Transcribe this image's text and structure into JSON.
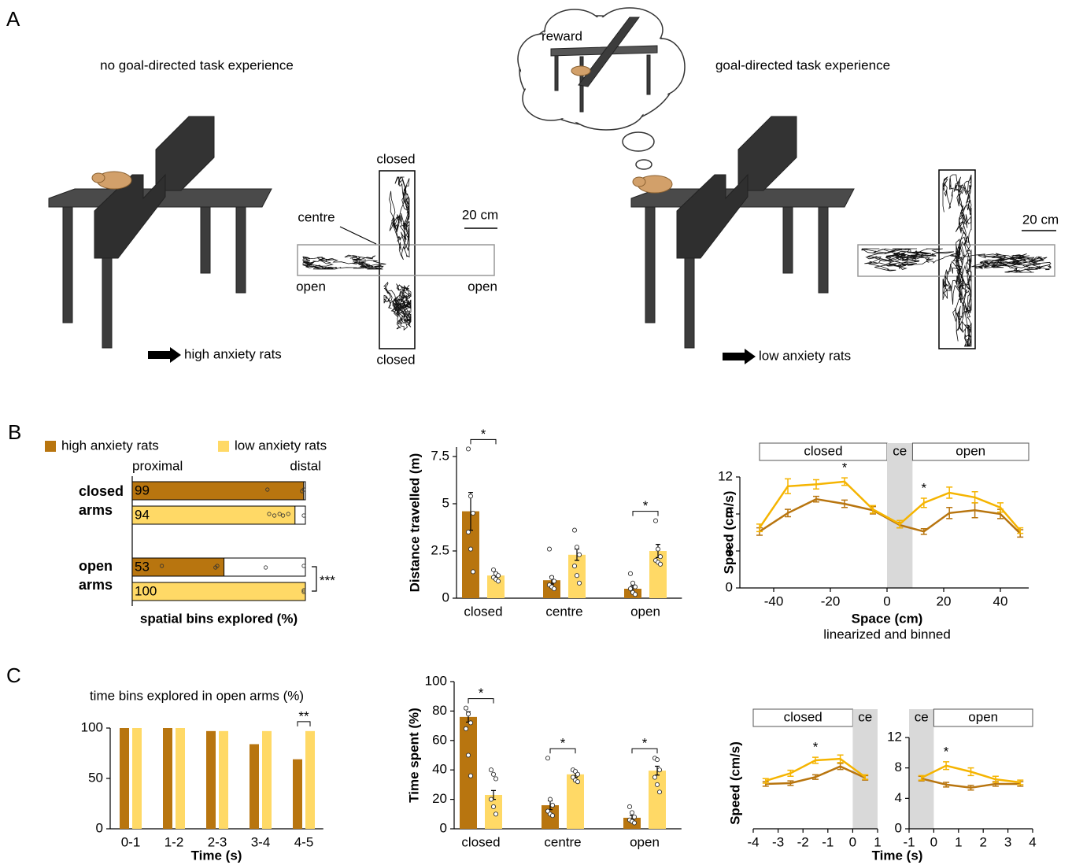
{
  "panel_labels": [
    "A",
    "B",
    "C"
  ],
  "panel_a": {
    "left": {
      "title": "no goal-directed task experience",
      "result": "high anxiety rats",
      "maze_labels": {
        "closed_top": "closed",
        "closed_bottom": "closed",
        "centre": "centre",
        "open_left": "open",
        "open_right": "open"
      },
      "scale_bar": "20 cm"
    },
    "right": {
      "title": "goal-directed task experience",
      "result": "low anxiety rats",
      "thought": "reward",
      "scale_bar": "20 cm"
    }
  },
  "chart_data": [
    {
      "type": "hbar",
      "categories": [
        "closed arms",
        "open arms"
      ],
      "series": [
        {
          "name": "high anxiety rats",
          "color": "#b8750f",
          "values": [
            99,
            53
          ],
          "points": [
            [
              79,
              99,
              100
            ],
            [
              18,
              49,
              50,
              78,
              100
            ]
          ]
        },
        {
          "name": "low anxiety rats",
          "color": "#ffd966",
          "values": [
            94,
            100
          ],
          "points": [
            [
              80,
              83,
              86,
              88,
              91,
              100
            ],
            [
              100,
              100
            ]
          ]
        }
      ],
      "xlim": [
        0,
        100
      ],
      "axis_ends": [
        "proximal",
        "distal"
      ],
      "xlabel": "spatial bins explored (%)",
      "annotations": [
        {
          "text": "***",
          "category": 1
        }
      ]
    },
    {
      "type": "bar",
      "ylabel": "Distance travelled (m)",
      "categories": [
        "closed",
        "centre",
        "open"
      ],
      "series": [
        {
          "color": "#b8750f",
          "values": [
            4.6,
            0.95,
            0.5
          ],
          "errors": [
            1.0,
            0.2,
            0.15
          ],
          "points": [
            [
              7.9,
              5.4,
              4.5,
              3.5,
              2.6,
              1.4
            ],
            [
              2.6,
              1.1,
              0.9,
              0.7,
              0.6,
              0.5
            ],
            [
              1.3,
              0.8,
              0.6,
              0.5,
              0.3,
              0.2
            ]
          ]
        },
        {
          "color": "#ffd966",
          "values": [
            1.2,
            2.3,
            2.5
          ],
          "errors": [
            0.15,
            0.3,
            0.35
          ],
          "points": [
            [
              1.5,
              1.3,
              1.2,
              1.1,
              1.0,
              0.9
            ],
            [
              3.6,
              2.7,
              2.3,
              1.7,
              1.2,
              0.8
            ],
            [
              4.1,
              2.6,
              2.2,
              2.0,
              1.9,
              1.8
            ]
          ]
        }
      ],
      "ylim": [
        0,
        8
      ],
      "yticks": [
        0,
        2.5,
        5,
        7.5
      ],
      "annotations": [
        {
          "text": "*",
          "category": 0
        },
        {
          "text": "*",
          "category": 2
        }
      ]
    },
    {
      "type": "line",
      "ylabel": "Speed (cm/s)",
      "xlabel": "Space (cm)",
      "subtitle": "linearized and binned",
      "x": [
        -45,
        -35,
        -25,
        -15,
        -5,
        4.5,
        13,
        22,
        31,
        40,
        47
      ],
      "series": [
        {
          "color": "#b8750f",
          "values": [
            6.1,
            8.1,
            9.6,
            9.1,
            8.4,
            6.8,
            6.1,
            8.1,
            8.4,
            8.0,
            5.9
          ],
          "errors": [
            0.4,
            0.4,
            0.3,
            0.4,
            0.4,
            0.3,
            0.3,
            0.6,
            0.8,
            0.5,
            0.4
          ]
        },
        {
          "color": "#f5b400",
          "values": [
            6.5,
            11.0,
            11.2,
            11.5,
            8.5,
            6.9,
            9.2,
            10.3,
            9.8,
            8.7,
            6.2
          ],
          "errors": [
            0.4,
            0.8,
            0.5,
            0.4,
            0.4,
            0.4,
            0.5,
            0.6,
            0.6,
            0.5,
            0.3
          ]
        }
      ],
      "xlim": [
        -50,
        50
      ],
      "ylim": [
        0,
        12
      ],
      "xticks": [
        -40,
        -20,
        0,
        20,
        40
      ],
      "yticks": [
        0,
        4,
        8,
        12
      ],
      "regions": [
        {
          "label": "closed",
          "span": [
            -45,
            0
          ]
        },
        {
          "label": "ce",
          "span": [
            0,
            9
          ],
          "shaded": true
        },
        {
          "label": "open",
          "span": [
            9,
            50
          ]
        }
      ],
      "annotations": [
        {
          "text": "*",
          "x": -15
        },
        {
          "text": "*",
          "x": 13
        }
      ]
    },
    {
      "type": "bar",
      "title": "time bins explored in open arms (%)",
      "xlabel": "Time (s)",
      "categories": [
        "0-1",
        "1-2",
        "2-3",
        "3-4",
        "4-5"
      ],
      "series": [
        {
          "color": "#b8750f",
          "values": [
            100,
            100,
            97,
            84,
            69
          ]
        },
        {
          "color": "#ffd966",
          "values": [
            100,
            100,
            97,
            97,
            97
          ]
        }
      ],
      "ylim": [
        0,
        100
      ],
      "yticks": [
        0,
        50,
        100
      ],
      "annotations": [
        {
          "text": "**",
          "category": 4
        }
      ]
    },
    {
      "type": "bar",
      "ylabel": "Time spent (%)",
      "categories": [
        "closed",
        "centre",
        "open"
      ],
      "series": [
        {
          "color": "#b8750f",
          "values": [
            76,
            16,
            7.5
          ],
          "errors": [
            3.5,
            3,
            1.5
          ],
          "points": [
            [
              82,
              78,
              72,
              68,
              50,
              36
            ],
            [
              48,
              20,
              16,
              12,
              10,
              9
            ],
            [
              15,
              11,
              8,
              6,
              5,
              4
            ]
          ]
        },
        {
          "color": "#ffd966",
          "values": [
            23,
            37,
            39.5
          ],
          "errors": [
            3,
            2,
            3
          ],
          "points": [
            [
              40,
              37,
              34,
              20,
              15,
              10
            ],
            [
              40,
              39,
              37,
              35,
              33,
              32
            ],
            [
              48,
              47,
              40,
              35,
              30,
              25
            ]
          ]
        }
      ],
      "ylim": [
        0,
        100
      ],
      "yticks": [
        0,
        20,
        40,
        60,
        80,
        100
      ],
      "annotations": [
        {
          "text": "*",
          "category": 0
        },
        {
          "text": "*",
          "category": 1
        },
        {
          "text": "*",
          "category": 2
        }
      ]
    },
    {
      "type": "line",
      "ylabel": "Speed (cm/s)",
      "x": [
        -3.5,
        -2.5,
        -1.5,
        -0.5,
        0.5
      ],
      "series": [
        {
          "color": "#b8750f",
          "values": [
            5.9,
            6.0,
            6.8,
            8.2,
            6.7
          ],
          "errors": [
            0.3,
            0.3,
            0.3,
            0.4,
            0.3
          ]
        },
        {
          "color": "#f5b400",
          "values": [
            6.3,
            7.3,
            9.0,
            9.2,
            6.8
          ],
          "errors": [
            0.3,
            0.4,
            0.4,
            0.5,
            0.3
          ]
        }
      ],
      "xlim": [
        -4,
        1
      ],
      "ylim": [
        0,
        12
      ],
      "xticks": [
        -4,
        -3,
        -2,
        -1,
        0,
        1
      ],
      "regions": [
        {
          "label": "closed",
          "span": [
            -4,
            0
          ]
        },
        {
          "label": "ce",
          "span": [
            0,
            1
          ],
          "shaded": true
        }
      ],
      "annotations": [
        {
          "text": "*",
          "x": -1.5
        }
      ]
    },
    {
      "type": "line",
      "xlabel": "Time (s)",
      "x": [
        -0.5,
        0.5,
        1.5,
        2.5,
        3.5
      ],
      "series": [
        {
          "color": "#b8750f",
          "values": [
            6.6,
            5.8,
            5.4,
            5.9,
            5.9
          ],
          "errors": [
            0.3,
            0.3,
            0.3,
            0.3,
            0.3
          ]
        },
        {
          "color": "#f5b400",
          "values": [
            6.7,
            8.3,
            7.5,
            6.5,
            6.1
          ],
          "errors": [
            0.3,
            0.5,
            0.5,
            0.4,
            0.3
          ]
        }
      ],
      "xlim": [
        -1,
        4
      ],
      "ylim": [
        0,
        12
      ],
      "xticks": [
        -1,
        0,
        1,
        2,
        3,
        4
      ],
      "yticks": [
        0,
        4,
        8,
        12
      ],
      "regions": [
        {
          "label": "ce",
          "span": [
            -1,
            0
          ],
          "shaded": true
        },
        {
          "label": "open",
          "span": [
            0,
            4
          ]
        }
      ],
      "annotations": [
        {
          "text": "*",
          "x": 0.5
        }
      ]
    }
  ]
}
